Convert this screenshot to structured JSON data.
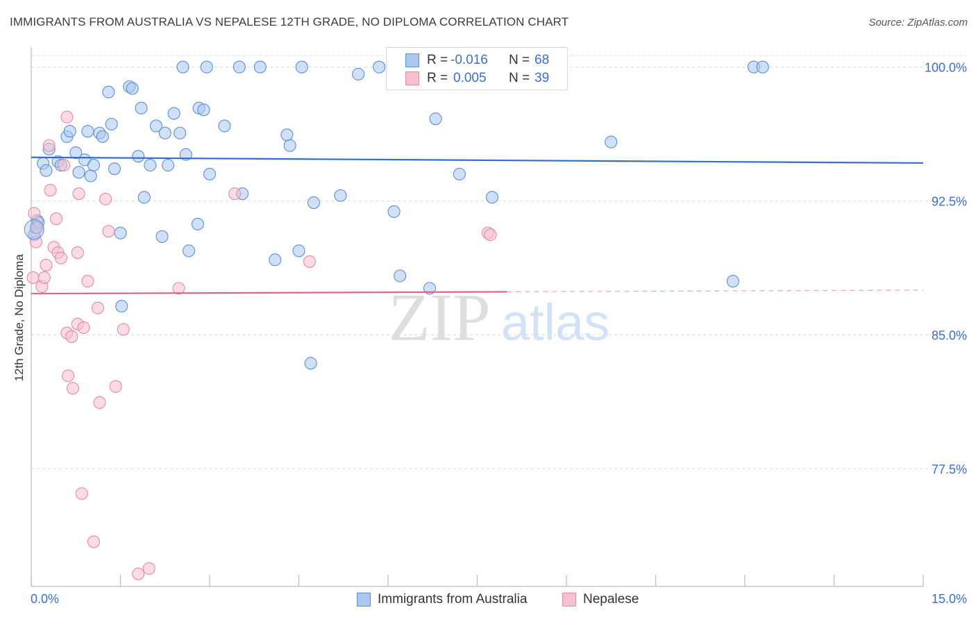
{
  "chart_data": {
    "type": "scatter",
    "title": "IMMIGRANTS FROM AUSTRALIA VS NEPALESE 12TH GRADE, NO DIPLOMA CORRELATION CHART",
    "source": "Source: ZipAtlas.com",
    "ylabel": "12th Grade, No Diploma",
    "xlabel": "",
    "xlim": [
      0,
      15
    ],
    "ylim": [
      70.9,
      101.5
    ],
    "x_tick_labels": [
      "0.0%",
      "15.0%"
    ],
    "y_ticks": [
      77.5,
      85.0,
      92.5,
      100.0
    ],
    "y_tick_labels": [
      "77.5%",
      "85.0%",
      "92.5%",
      "100.0%"
    ],
    "watermark": {
      "zip": "ZIP",
      "atlas": "atlas"
    },
    "series": [
      {
        "name": "Immigrants from Australia",
        "color": "#a9c7f0",
        "edge": "#5b8fd6",
        "line_color": "#2e6fcc",
        "R": "-0.016",
        "N": "68",
        "trend": {
          "x0": 0,
          "y0": 94.94,
          "x1": 15,
          "y1": 94.62,
          "dash_from": null
        },
        "points": [
          [
            0.1,
            91.4
          ],
          [
            0.2,
            94.6
          ],
          [
            0.25,
            94.2
          ],
          [
            0.3,
            95.4
          ],
          [
            0.45,
            94.7
          ],
          [
            0.5,
            94.5
          ],
          [
            0.6,
            96.1
          ],
          [
            0.65,
            96.4
          ],
          [
            0.75,
            95.2
          ],
          [
            0.8,
            94.1
          ],
          [
            0.9,
            94.8
          ],
          [
            0.95,
            96.4
          ],
          [
            1.0,
            93.9
          ],
          [
            1.05,
            94.5
          ],
          [
            1.15,
            96.3
          ],
          [
            1.2,
            96.1
          ],
          [
            1.3,
            98.6
          ],
          [
            1.35,
            96.8
          ],
          [
            1.4,
            94.3
          ],
          [
            1.5,
            90.7
          ],
          [
            1.52,
            86.6
          ],
          [
            1.65,
            98.9
          ],
          [
            1.7,
            98.8
          ],
          [
            1.8,
            95.0
          ],
          [
            1.85,
            97.7
          ],
          [
            1.9,
            92.7
          ],
          [
            2.0,
            94.5
          ],
          [
            2.1,
            96.7
          ],
          [
            2.2,
            90.5
          ],
          [
            2.25,
            96.3
          ],
          [
            2.3,
            94.5
          ],
          [
            2.4,
            97.4
          ],
          [
            2.5,
            96.3
          ],
          [
            2.55,
            100.0
          ],
          [
            2.6,
            95.1
          ],
          [
            2.65,
            89.7
          ],
          [
            2.8,
            91.2
          ],
          [
            2.82,
            97.7
          ],
          [
            2.9,
            97.6
          ],
          [
            2.95,
            100.0
          ],
          [
            3.0,
            94.0
          ],
          [
            3.25,
            96.7
          ],
          [
            3.5,
            100.0
          ],
          [
            3.55,
            92.9
          ],
          [
            3.85,
            100.0
          ],
          [
            4.1,
            89.2
          ],
          [
            4.3,
            96.2
          ],
          [
            4.35,
            95.6
          ],
          [
            4.5,
            89.7
          ],
          [
            4.55,
            100.0
          ],
          [
            4.7,
            83.4
          ],
          [
            4.75,
            92.4
          ],
          [
            5.2,
            92.8
          ],
          [
            5.5,
            99.6
          ],
          [
            5.85,
            100.0
          ],
          [
            6.1,
            91.9
          ],
          [
            6.2,
            88.3
          ],
          [
            6.7,
            87.6
          ],
          [
            6.8,
            97.1
          ],
          [
            7.2,
            94.0
          ],
          [
            7.75,
            92.7
          ],
          [
            9.75,
            95.8
          ],
          [
            11.8,
            88.0
          ],
          [
            12.15,
            100.0
          ],
          [
            12.3,
            100.0
          ],
          [
            0.05,
            90.6
          ],
          [
            0.08,
            91.0
          ],
          [
            0.12,
            91.3
          ]
        ]
      },
      {
        "name": "Nepalese",
        "color": "#f7bfd0",
        "edge": "#e688a8",
        "line_color": "#e0658d",
        "R": "0.005",
        "N": "39",
        "trend": {
          "x0": 0,
          "y0": 87.3,
          "x1": 15,
          "y1": 87.5,
          "dash_from": 8.0
        },
        "points": [
          [
            0.03,
            88.2
          ],
          [
            0.05,
            91.8
          ],
          [
            0.08,
            90.2
          ],
          [
            0.1,
            91.0
          ],
          [
            0.18,
            87.7
          ],
          [
            0.22,
            88.2
          ],
          [
            0.25,
            88.9
          ],
          [
            0.3,
            95.6
          ],
          [
            0.32,
            93.1
          ],
          [
            0.38,
            89.9
          ],
          [
            0.42,
            91.5
          ],
          [
            0.45,
            89.6
          ],
          [
            0.5,
            89.3
          ],
          [
            0.55,
            94.5
          ],
          [
            0.6,
            97.2
          ],
          [
            0.6,
            85.1
          ],
          [
            0.62,
            82.7
          ],
          [
            0.68,
            84.9
          ],
          [
            0.7,
            82.0
          ],
          [
            0.78,
            89.6
          ],
          [
            0.78,
            85.6
          ],
          [
            0.8,
            92.9
          ],
          [
            0.85,
            76.1
          ],
          [
            0.88,
            85.4
          ],
          [
            0.95,
            88.0
          ],
          [
            1.05,
            73.4
          ],
          [
            1.12,
            86.5
          ],
          [
            1.15,
            81.2
          ],
          [
            1.25,
            92.6
          ],
          [
            1.3,
            90.8
          ],
          [
            1.42,
            82.1
          ],
          [
            1.55,
            85.3
          ],
          [
            1.8,
            71.6
          ],
          [
            1.98,
            71.9
          ],
          [
            2.48,
            87.6
          ],
          [
            3.42,
            92.9
          ],
          [
            4.68,
            89.1
          ],
          [
            7.68,
            90.7
          ],
          [
            7.72,
            90.6
          ]
        ]
      }
    ]
  }
}
